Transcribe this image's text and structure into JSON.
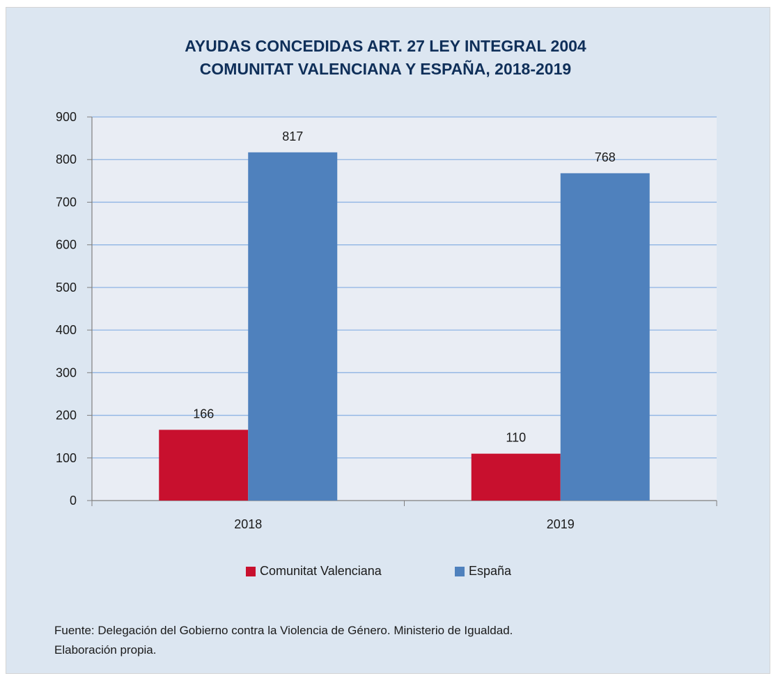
{
  "chart_data": {
    "type": "bar",
    "title_lines": [
      "AYUDAS CONCEDIDAS ART. 27 LEY INTEGRAL 2004",
      "COMUNITAT  VALENCIANA Y ESPAÑA, 2018-2019"
    ],
    "categories": [
      "2018",
      "2019"
    ],
    "series": [
      {
        "name": "Comunitat Valenciana",
        "values": [
          166,
          110
        ],
        "color": "#c8102e"
      },
      {
        "name": "España",
        "values": [
          817,
          768
        ],
        "color": "#4f81bd"
      }
    ],
    "ylim": [
      0,
      900
    ],
    "yticks": [
      0,
      100,
      200,
      300,
      400,
      500,
      600,
      700,
      800,
      900
    ],
    "grid": true,
    "data_labels": true,
    "legend_position": "bottom"
  },
  "source": {
    "line1": "Fuente: Delegación del Gobierno contra la Violencia de Género. Ministerio de Igualdad.",
    "line2": "Elaboración propia."
  },
  "colors": {
    "background": "#dce6f1",
    "plot_area": "#e9edf4",
    "gridline": "#8eb4e3",
    "title": "#0f2f59"
  }
}
